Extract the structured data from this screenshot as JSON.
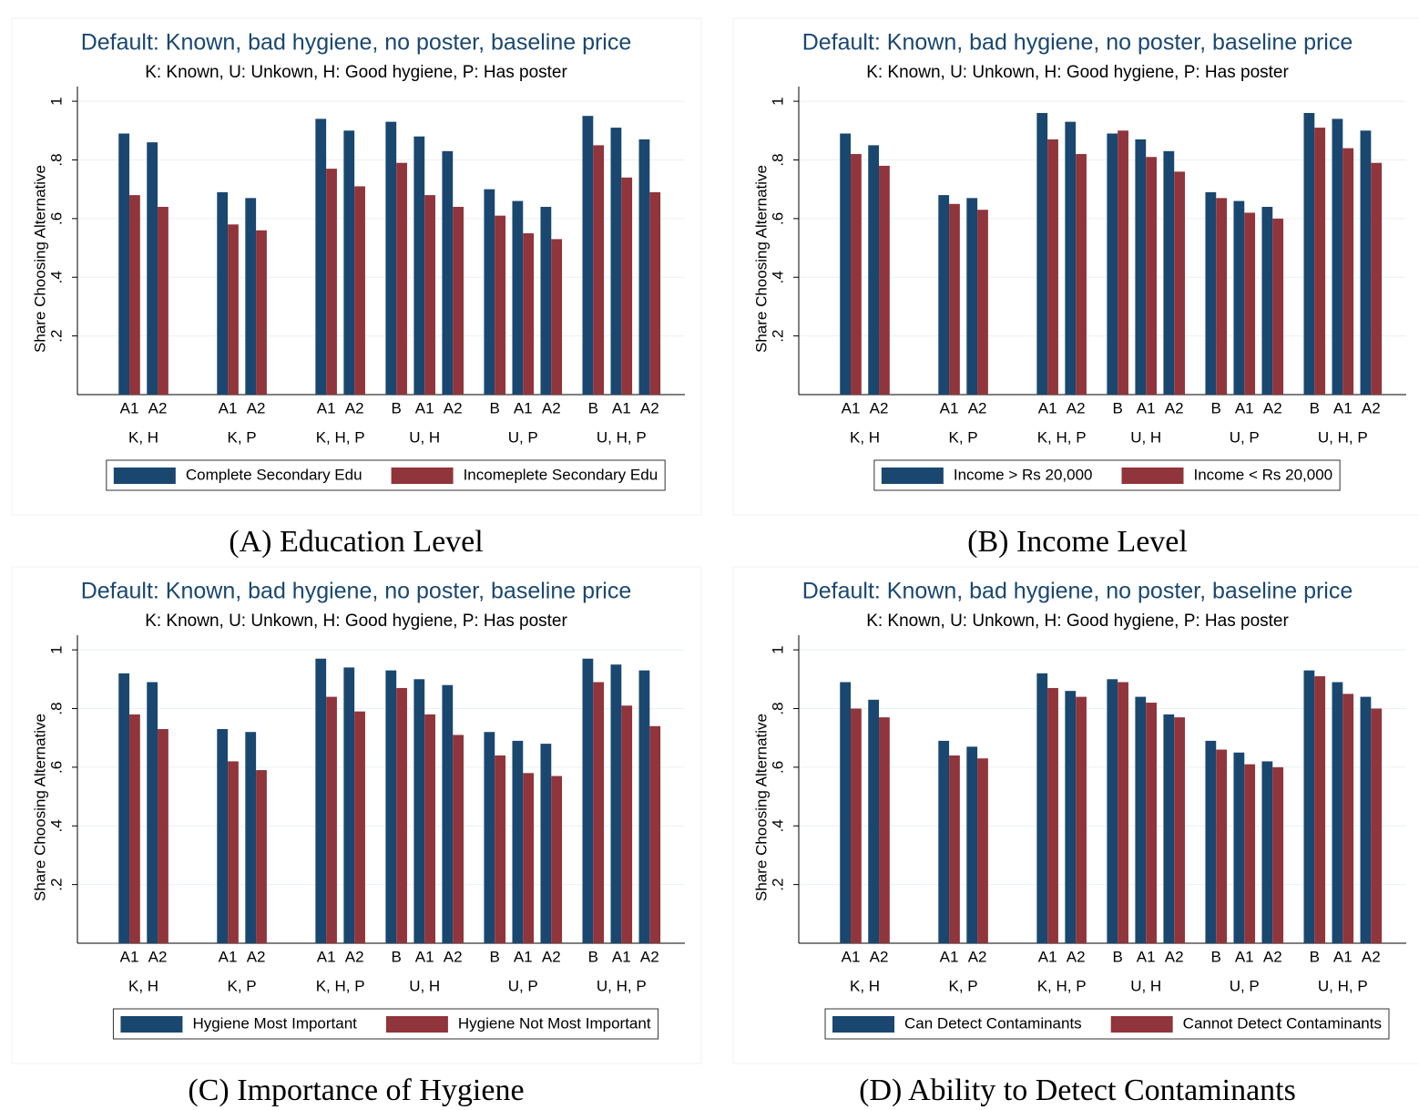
{
  "chart_data": [
    {
      "type": "bar",
      "title": "Default: Known, bad hygiene, no poster, baseline price",
      "subtitle": "K: Known, U: Unkown, H: Good hygiene, P: Has poster",
      "y_label": "Share Choosing Alternative",
      "caption": "(A) Education Level",
      "groups": [
        {
          "name": "K, H",
          "categories": [
            "A1",
            "A2"
          ]
        },
        {
          "name": "K, P",
          "categories": [
            "A1",
            "A2"
          ]
        },
        {
          "name": "K, H, P",
          "categories": [
            "A1",
            "A2"
          ]
        },
        {
          "name": "U, H",
          "categories": [
            "B",
            "A1",
            "A2"
          ]
        },
        {
          "name": "U, P",
          "categories": [
            "B",
            "A1",
            "A2"
          ]
        },
        {
          "name": "U, H, P",
          "categories": [
            "B",
            "A1",
            "A2"
          ]
        }
      ],
      "series": [
        {
          "name": "Complete Secondary Edu",
          "color": "#1a476f",
          "values": [
            0.89,
            0.86,
            0.69,
            0.67,
            0.94,
            0.9,
            0.93,
            0.88,
            0.83,
            0.7,
            0.66,
            0.64,
            0.95,
            0.91,
            0.87
          ]
        },
        {
          "name": "Incomeplete Secondary Edu",
          "color": "#90353b",
          "values": [
            0.68,
            0.64,
            0.58,
            0.56,
            0.77,
            0.71,
            0.79,
            0.68,
            0.64,
            0.61,
            0.55,
            0.53,
            0.85,
            0.74,
            0.69
          ]
        }
      ],
      "ylim": [
        0,
        1.05
      ],
      "yticks": [
        {
          "value": 0.2,
          "label": ".2"
        },
        {
          "value": 0.4,
          "label": ".4"
        },
        {
          "value": 0.6,
          "label": ".6"
        },
        {
          "value": 0.8,
          "label": ".8"
        },
        1
      ],
      "grid": true
    },
    {
      "type": "bar",
      "title": "Default: Known, bad hygiene, no poster, baseline price",
      "subtitle": "K: Known, U: Unkown, H: Good hygiene, P: Has poster",
      "y_label": "Share Choosing Alternative",
      "caption": "(B) Income Level",
      "groups": [
        {
          "name": "K, H",
          "categories": [
            "A1",
            "A2"
          ]
        },
        {
          "name": "K, P",
          "categories": [
            "A1",
            "A2"
          ]
        },
        {
          "name": "K, H, P",
          "categories": [
            "A1",
            "A2"
          ]
        },
        {
          "name": "U, H",
          "categories": [
            "B",
            "A1",
            "A2"
          ]
        },
        {
          "name": "U, P",
          "categories": [
            "B",
            "A1",
            "A2"
          ]
        },
        {
          "name": "U, H, P",
          "categories": [
            "B",
            "A1",
            "A2"
          ]
        }
      ],
      "series": [
        {
          "name": "Income > Rs 20,000",
          "color": "#1a476f",
          "values": [
            0.89,
            0.85,
            0.68,
            0.67,
            0.96,
            0.93,
            0.89,
            0.87,
            0.83,
            0.69,
            0.66,
            0.64,
            0.96,
            0.94,
            0.9
          ]
        },
        {
          "name": "Income < Rs 20,000",
          "color": "#90353b",
          "values": [
            0.82,
            0.78,
            0.65,
            0.63,
            0.87,
            0.82,
            0.9,
            0.81,
            0.76,
            0.67,
            0.62,
            0.6,
            0.91,
            0.84,
            0.79
          ]
        }
      ],
      "ylim": [
        0,
        1.05
      ],
      "yticks": [
        {
          "value": 0.2,
          "label": ".2"
        },
        {
          "value": 0.4,
          "label": ".4"
        },
        {
          "value": 0.6,
          "label": ".6"
        },
        {
          "value": 0.8,
          "label": ".8"
        },
        1
      ],
      "grid": true
    },
    {
      "type": "bar",
      "title": "Default: Known, bad hygiene, no poster, baseline price",
      "subtitle": "K: Known, U: Unkown, H: Good hygiene, P: Has poster",
      "y_label": "Share Choosing Alternative",
      "caption": "(C) Importance of Hygiene",
      "groups": [
        {
          "name": "K, H",
          "categories": [
            "A1",
            "A2"
          ]
        },
        {
          "name": "K, P",
          "categories": [
            "A1",
            "A2"
          ]
        },
        {
          "name": "K, H, P",
          "categories": [
            "A1",
            "A2"
          ]
        },
        {
          "name": "U, H",
          "categories": [
            "B",
            "A1",
            "A2"
          ]
        },
        {
          "name": "U, P",
          "categories": [
            "B",
            "A1",
            "A2"
          ]
        },
        {
          "name": "U, H, P",
          "categories": [
            "B",
            "A1",
            "A2"
          ]
        }
      ],
      "series": [
        {
          "name": "Hygiene Most Important",
          "color": "#1a476f",
          "values": [
            0.92,
            0.89,
            0.73,
            0.72,
            0.97,
            0.94,
            0.93,
            0.9,
            0.88,
            0.72,
            0.69,
            0.68,
            0.97,
            0.95,
            0.93
          ]
        },
        {
          "name": "Hygiene Not Most Important",
          "color": "#90353b",
          "values": [
            0.78,
            0.73,
            0.62,
            0.59,
            0.84,
            0.79,
            0.87,
            0.78,
            0.71,
            0.64,
            0.58,
            0.57,
            0.89,
            0.81,
            0.74
          ]
        }
      ],
      "ylim": [
        0,
        1.05
      ],
      "yticks": [
        {
          "value": 0.2,
          "label": ".2"
        },
        {
          "value": 0.4,
          "label": ".4"
        },
        {
          "value": 0.6,
          "label": ".6"
        },
        {
          "value": 0.8,
          "label": ".8"
        },
        1
      ],
      "grid": true
    },
    {
      "type": "bar",
      "title": "Default: Known, bad hygiene, no poster, baseline price",
      "subtitle": "K: Known, U: Unkown, H: Good hygiene, P: Has poster",
      "y_label": "Share Choosing Alternative",
      "caption": "(D) Ability to Detect Contaminants",
      "groups": [
        {
          "name": "K, H",
          "categories": [
            "A1",
            "A2"
          ]
        },
        {
          "name": "K, P",
          "categories": [
            "A1",
            "A2"
          ]
        },
        {
          "name": "K, H, P",
          "categories": [
            "A1",
            "A2"
          ]
        },
        {
          "name": "U, H",
          "categories": [
            "B",
            "A1",
            "A2"
          ]
        },
        {
          "name": "U, P",
          "categories": [
            "B",
            "A1",
            "A2"
          ]
        },
        {
          "name": "U, H, P",
          "categories": [
            "B",
            "A1",
            "A2"
          ]
        }
      ],
      "series": [
        {
          "name": "Can Detect Contaminants",
          "color": "#1a476f",
          "values": [
            0.89,
            0.83,
            0.69,
            0.67,
            0.92,
            0.86,
            0.9,
            0.84,
            0.78,
            0.69,
            0.65,
            0.62,
            0.93,
            0.89,
            0.84
          ]
        },
        {
          "name": "Cannot Detect Contaminants",
          "color": "#90353b",
          "values": [
            0.8,
            0.77,
            0.64,
            0.63,
            0.87,
            0.84,
            0.89,
            0.82,
            0.77,
            0.66,
            0.61,
            0.6,
            0.91,
            0.85,
            0.8
          ]
        }
      ],
      "ylim": [
        0,
        1.05
      ],
      "yticks": [
        {
          "value": 0.2,
          "label": ".2"
        },
        {
          "value": 0.4,
          "label": ".4"
        },
        {
          "value": 0.6,
          "label": ".6"
        },
        {
          "value": 0.8,
          "label": ".8"
        },
        1
      ],
      "grid": true
    }
  ]
}
